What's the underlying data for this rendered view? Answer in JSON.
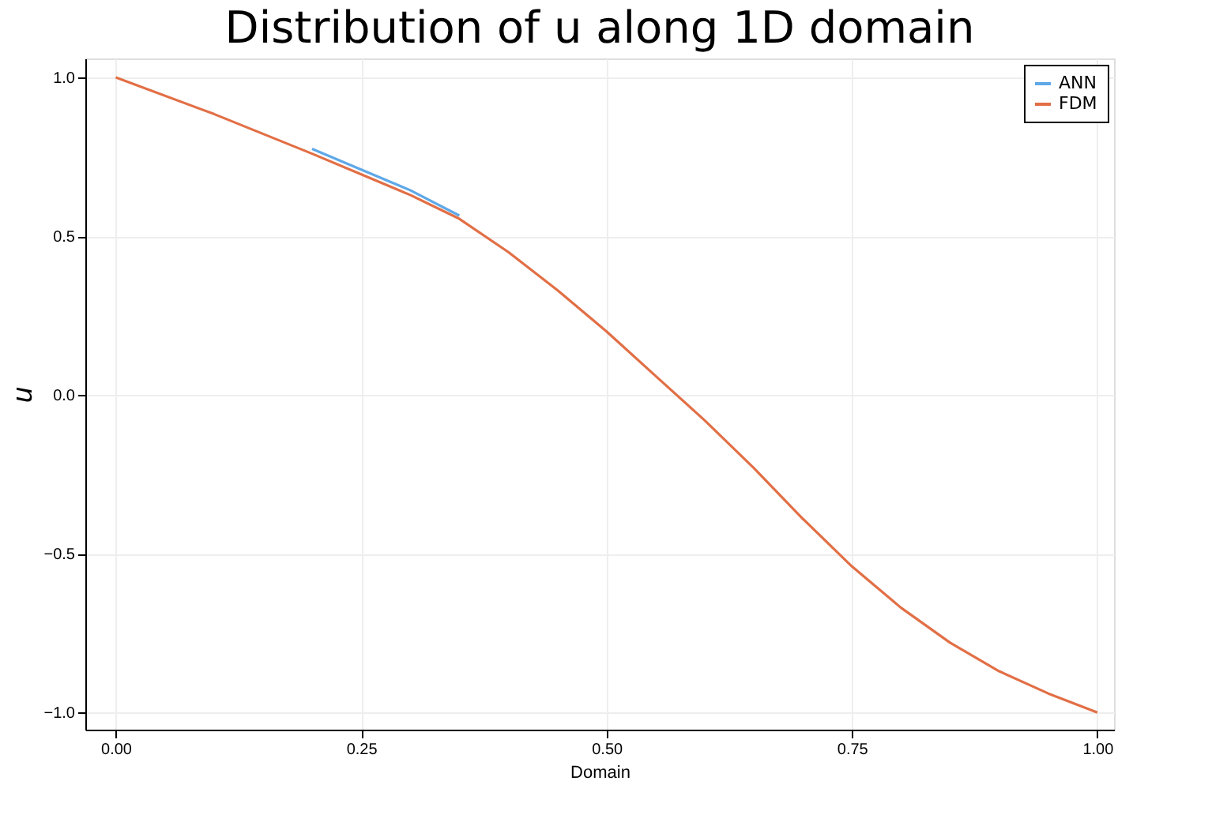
{
  "chart_data": {
    "type": "line",
    "title": "Distribution of u along 1D domain",
    "xlabel": "Domain",
    "ylabel": "u",
    "x": [
      0,
      0.1,
      0.2,
      0.25,
      0.3,
      0.35,
      0.4,
      0.45,
      0.5,
      0.55,
      0.6,
      0.65,
      0.7,
      0.75,
      0.8,
      0.85,
      0.9,
      0.95,
      1.0
    ],
    "series": [
      {
        "name": "ANN",
        "color": "#5ea8e8",
        "values": [
          null,
          null,
          0.775,
          0.71,
          0.645,
          0.565,
          null,
          null,
          null,
          null,
          null,
          null,
          null,
          null,
          null,
          null,
          null,
          null,
          null
        ]
      },
      {
        "name": "FDM",
        "color": "#e26f46",
        "values": [
          1.0,
          0.885,
          0.76,
          0.695,
          0.63,
          0.555,
          0.45,
          0.33,
          0.2,
          0.06,
          -0.08,
          -0.23,
          -0.39,
          -0.54,
          -0.67,
          -0.78,
          -0.87,
          -0.94,
          -1.0
        ]
      }
    ],
    "xlim": [
      -0.031,
      1.017
    ],
    "ylim": [
      -1.054,
      1.06
    ],
    "xticks": [
      {
        "value": 0,
        "label": "0.00"
      },
      {
        "value": 0.25,
        "label": "0.25"
      },
      {
        "value": 0.5,
        "label": "0.50"
      },
      {
        "value": 0.75,
        "label": "0.75"
      },
      {
        "value": 1,
        "label": "1.00"
      }
    ],
    "yticks": [
      {
        "value": -1,
        "label": "−1.0"
      },
      {
        "value": -0.5,
        "label": "−0.5"
      },
      {
        "value": 0,
        "label": "0.0"
      },
      {
        "value": 0.5,
        "label": "0.5"
      },
      {
        "value": 1,
        "label": "1.0"
      }
    ],
    "grid": true,
    "legend": "top right",
    "line_style": "solid",
    "marker": "none"
  }
}
